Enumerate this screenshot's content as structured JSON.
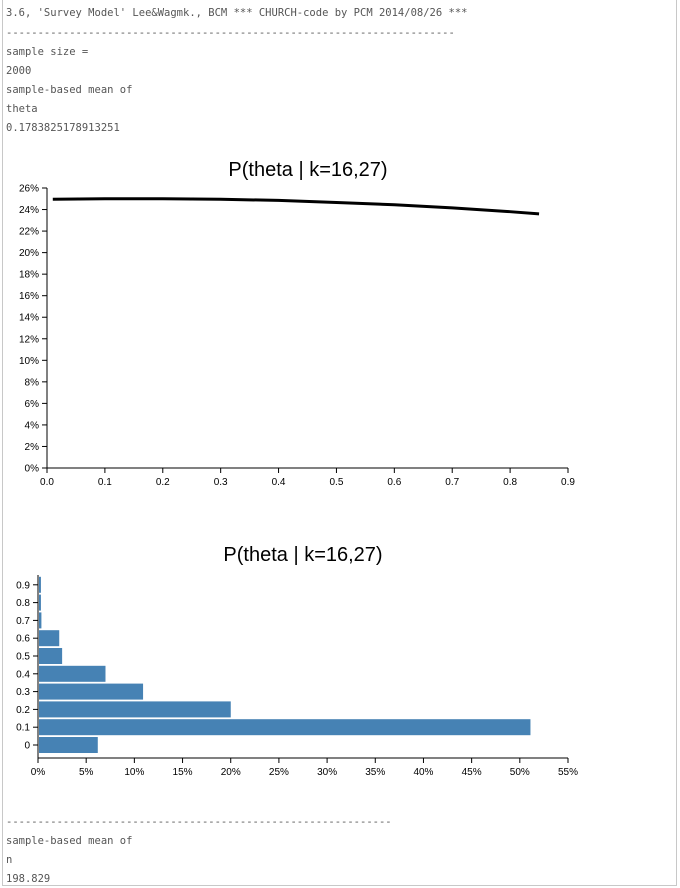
{
  "console": {
    "header": "3.6, 'Survey Model' Lee&Wagmk., BCM *** CHURCH-code by PCM 2014/08/26 ***",
    "divider_top": "-----------------------------------------------------------------------",
    "line1": "sample size =",
    "line2": "2000",
    "line3": "sample-based mean of",
    "line4": "theta",
    "line5": "0.1783825178913251",
    "divider_bottom": "-------------------------------------------------------------",
    "line6": "sample-based mean of",
    "line7": "n",
    "line8": "198.829"
  },
  "chart_data": [
    {
      "type": "line",
      "title": "P(theta | k=16,27)",
      "xlabel": "",
      "ylabel": "",
      "x": [
        0.01,
        0.1,
        0.2,
        0.3,
        0.4,
        0.5,
        0.6,
        0.7,
        0.8,
        0.85
      ],
      "y": [
        24.95,
        25.0,
        25.0,
        24.95,
        24.85,
        24.65,
        24.45,
        24.15,
        23.8,
        23.6
      ],
      "xlim": [
        0,
        0.9
      ],
      "ylim": [
        0,
        26
      ],
      "x_ticks": [
        "0.0",
        "0.1",
        "0.2",
        "0.3",
        "0.4",
        "0.5",
        "0.6",
        "0.7",
        "0.8",
        "0.9"
      ],
      "y_ticks": [
        "0%",
        "2%",
        "4%",
        "6%",
        "8%",
        "10%",
        "12%",
        "14%",
        "16%",
        "18%",
        "20%",
        "22%",
        "24%",
        "26%"
      ],
      "grid": false,
      "color": "#000000"
    },
    {
      "type": "bar",
      "orientation": "horizontal",
      "title": "P(theta | k=16,27)",
      "categories": [
        "0",
        "0.1",
        "0.2",
        "0.3",
        "0.4",
        "0.5",
        "0.6",
        "0.7",
        "0.8",
        "0.9"
      ],
      "values": [
        6.1,
        51.0,
        19.9,
        10.8,
        6.9,
        2.4,
        2.1,
        0.25,
        0.2,
        0.2
      ],
      "xlim": [
        0,
        55
      ],
      "x_ticks": [
        "0%",
        "5%",
        "10%",
        "15%",
        "20%",
        "25%",
        "30%",
        "35%",
        "40%",
        "45%",
        "50%",
        "55%"
      ],
      "grid": false,
      "color": "#4682b4"
    }
  ]
}
